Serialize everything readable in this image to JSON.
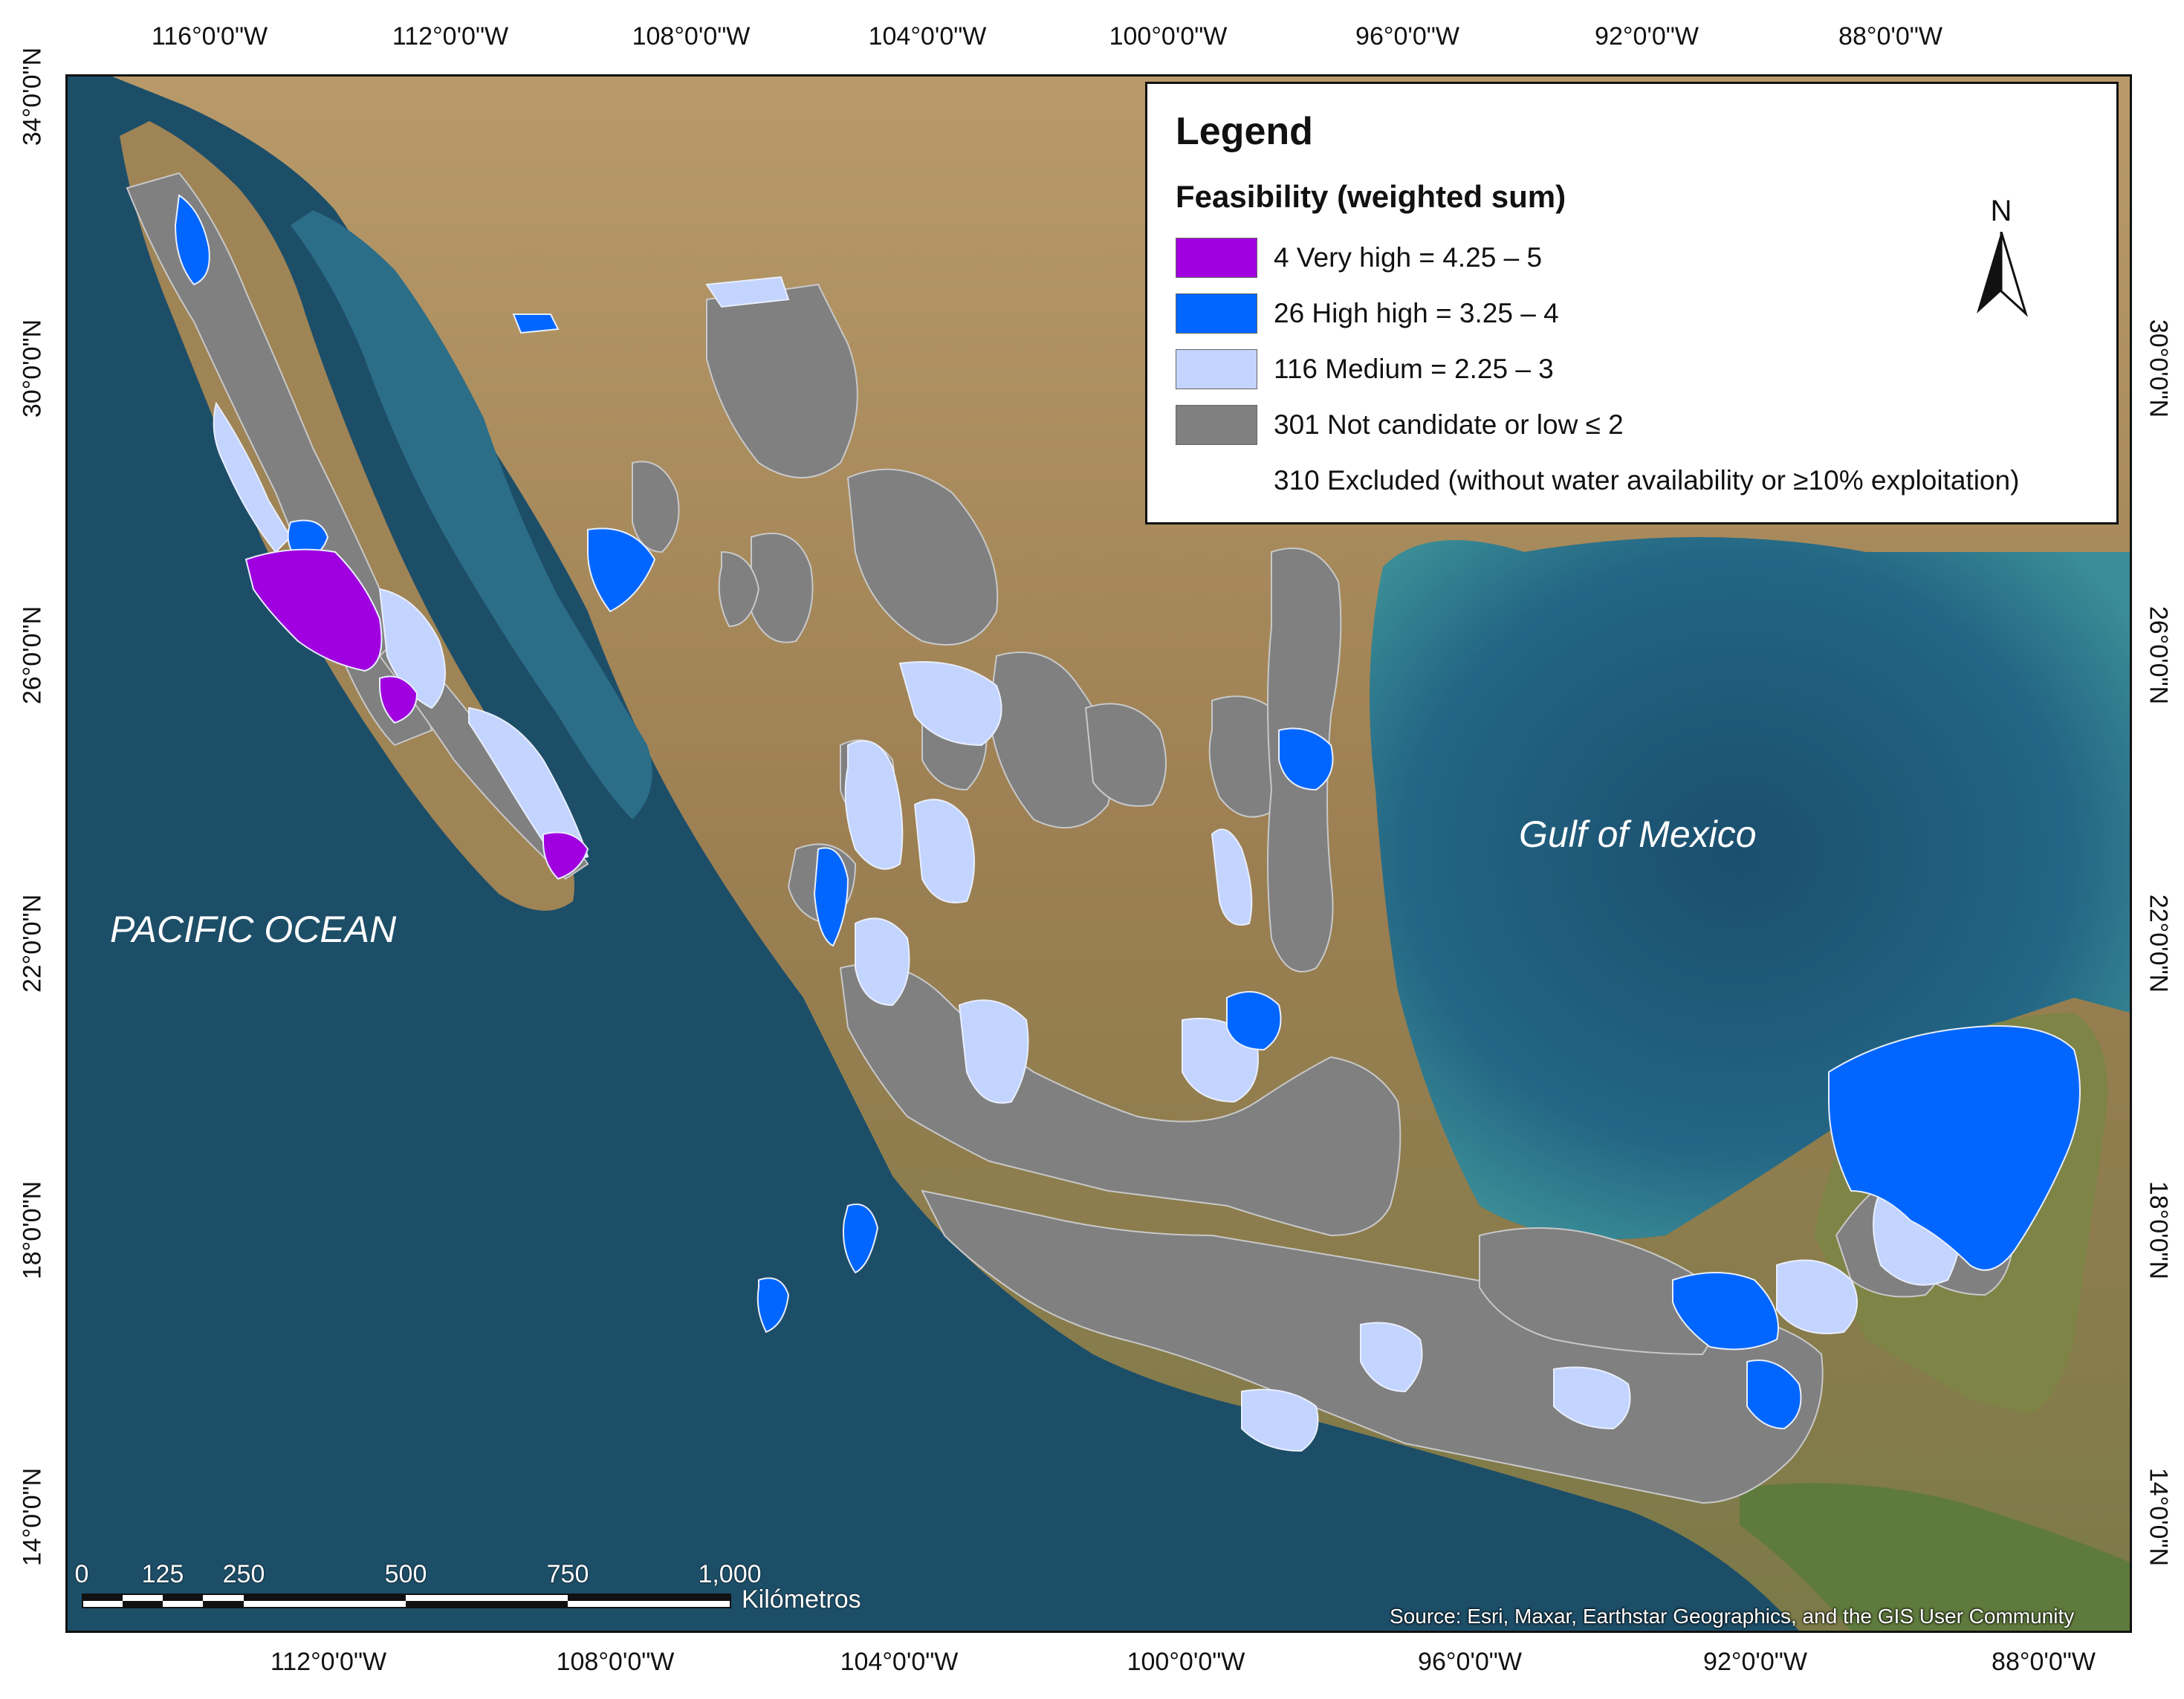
{
  "map": {
    "ocean_labels": {
      "pacific": "PACIFIC OCEAN",
      "gulf": "Gulf of Mexico"
    },
    "source": "Source: Esri, Maxar, Earthstar Geographics, and the GIS User Community",
    "colors": {
      "ocean_deep": "#1e4f68",
      "ocean_shelf": "#2e7a8e",
      "land": "#a9895a",
      "land_green": "#6f7d44",
      "very_high": "#a000e0",
      "high": "#0066ff",
      "medium": "#c3d4ff",
      "low": "#808080"
    }
  },
  "graticule": {
    "top": [
      "116°0'0\"W",
      "112°0'0\"W",
      "108°0'0\"W",
      "104°0'0\"W",
      "100°0'0\"W",
      "96°0'0\"W",
      "92°0'0\"W",
      "88°0'0\"W"
    ],
    "bottom": [
      "112°0'0\"W",
      "108°0'0\"W",
      "104°0'0\"W",
      "100°0'0\"W",
      "96°0'0\"W",
      "92°0'0\"W",
      "88°0'0\"W"
    ],
    "left": [
      "34°0'0\"N",
      "30°0'0\"N",
      "26°0'0\"N",
      "22°0'0\"N",
      "18°0'0\"N",
      "14°0'0\"N"
    ],
    "right": [
      "30°0'0\"N",
      "26°0'0\"N",
      "22°0'0\"N",
      "18°0'0\"N",
      "14°0'0\"N"
    ]
  },
  "legend": {
    "title": "Legend",
    "subtitle": "Feasibility (weighted sum)",
    "items": [
      {
        "label": "4 Very high = 4.25 – 5",
        "color": "#a000e0"
      },
      {
        "label": "26 High high = 3.25 – 4",
        "color": "#0066ff"
      },
      {
        "label": "116 Medium = 2.25 – 3",
        "color": "#c3d4ff"
      },
      {
        "label": "301 Not candidate or low ≤ 2",
        "color": "#808080"
      },
      {
        "label": "310 Excluded (without water availability or ≥10% exploitation)",
        "color": ""
      }
    ]
  },
  "north_arrow": {
    "letter": "N"
  },
  "scalebar": {
    "ticks": [
      "0",
      "125",
      "250",
      "500",
      "750",
      "1,000"
    ],
    "unit": "Kilómetros"
  }
}
